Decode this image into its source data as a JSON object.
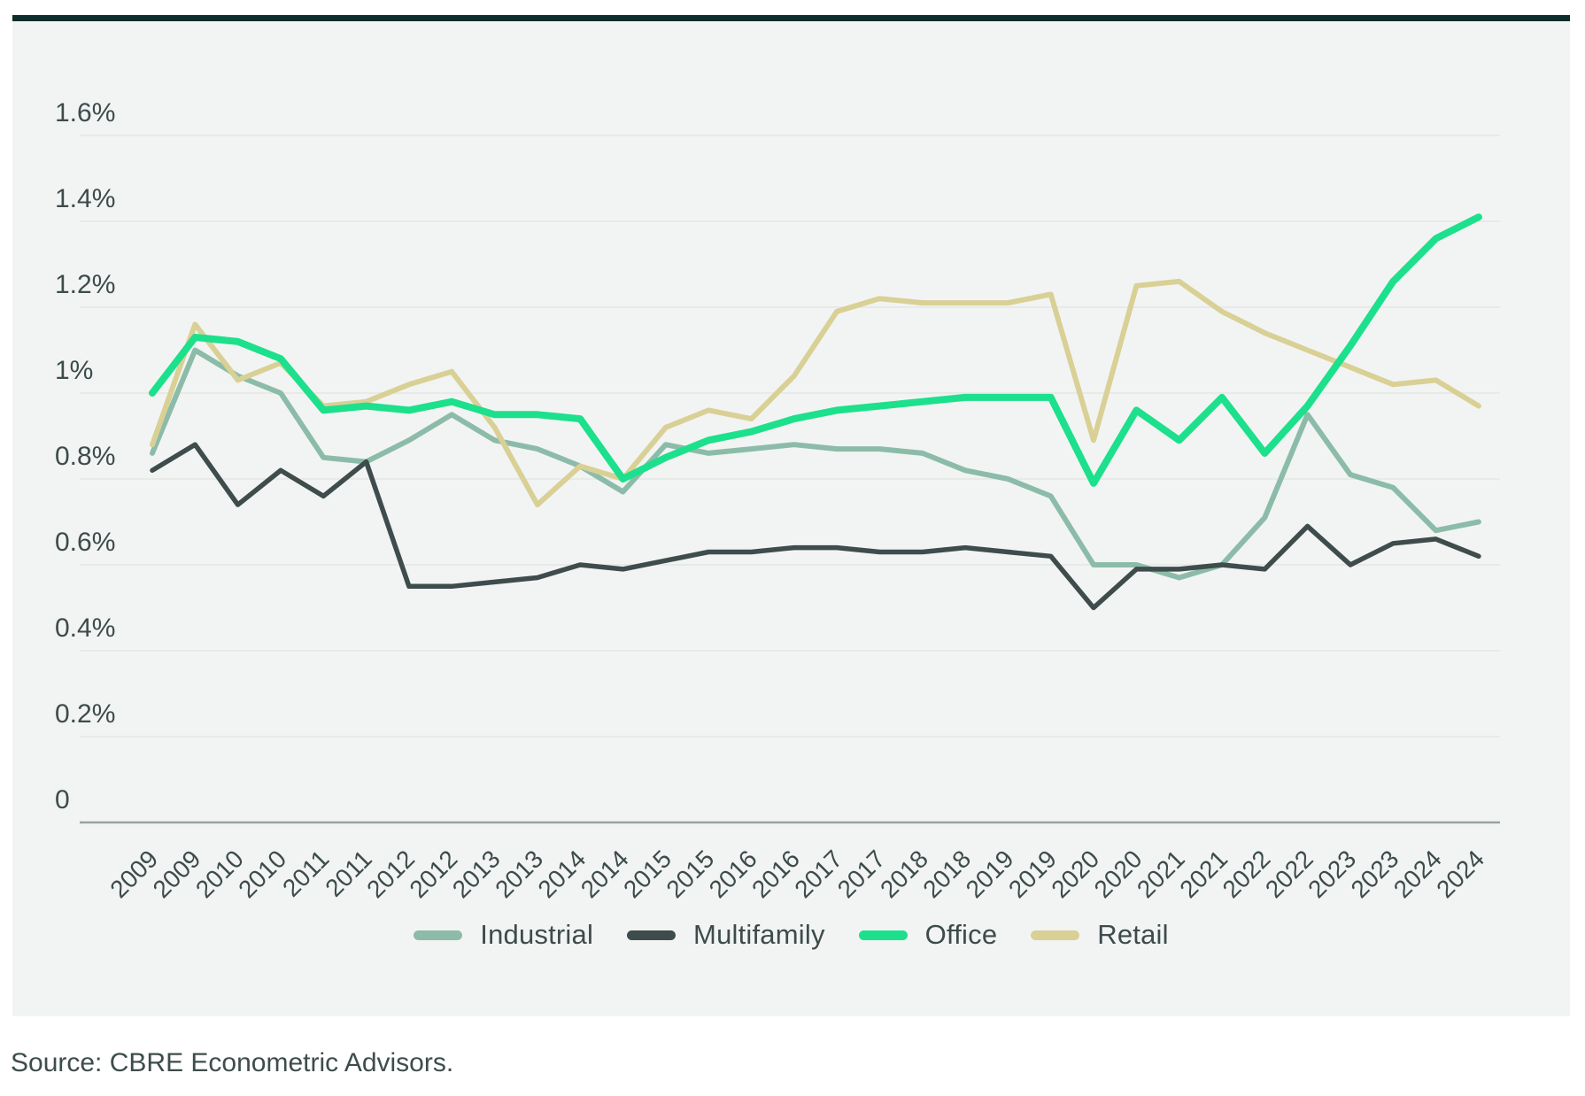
{
  "page": {
    "source_note": "Source: CBRE Econometric Advisors."
  },
  "style": {
    "accent_bar_color": "#0d2e2b",
    "card_background": "#f2f4f3",
    "gridline_color": "#e4e7e5",
    "axis_line_color": "#98a2a0",
    "tick_label_color": "#3d4b4b"
  },
  "chart_data": {
    "type": "line",
    "title": "",
    "xlabel": "",
    "ylabel": "",
    "unit": "%",
    "grid": true,
    "legend_position": "bottom-center",
    "ylim": [
      0,
      1.75
    ],
    "y_ticks": [
      "1.6%",
      "1.4%",
      "1.2%",
      "1%",
      "0.8%",
      "0.6%",
      "0.4%",
      "0.2%",
      "0"
    ],
    "y_tick_values": [
      1.6,
      1.4,
      1.2,
      1.0,
      0.8,
      0.6,
      0.4,
      0.2,
      0
    ],
    "x_labels": [
      "2009",
      "2009",
      "2010",
      "2010",
      "2011",
      "2011",
      "2012",
      "2012",
      "2013",
      "2013",
      "2014",
      "2014",
      "2015",
      "2015",
      "2016",
      "2016",
      "2017",
      "2017",
      "2018",
      "2018",
      "2019",
      "2019",
      "2020",
      "2020",
      "2021",
      "2021",
      "2022",
      "2022",
      "2023",
      "2023",
      "2024",
      "2024"
    ],
    "series": [
      {
        "name": "Industrial",
        "color": "#8cbca9",
        "values": [
          0.86,
          1.1,
          1.04,
          1.0,
          0.85,
          0.84,
          0.89,
          0.95,
          0.89,
          0.87,
          0.83,
          0.77,
          0.88,
          0.86,
          0.87,
          0.88,
          0.87,
          0.87,
          0.86,
          0.82,
          0.8,
          0.76,
          0.6,
          0.6,
          0.57,
          0.6,
          0.71,
          0.95,
          0.81,
          0.78,
          0.68,
          0.7
        ]
      },
      {
        "name": "Multifamily",
        "color": "#3e4c4c",
        "values": [
          0.82,
          0.88,
          0.74,
          0.82,
          0.76,
          0.84,
          0.55,
          0.55,
          0.56,
          0.57,
          0.6,
          0.59,
          0.61,
          0.63,
          0.63,
          0.64,
          0.64,
          0.63,
          0.63,
          0.64,
          0.63,
          0.62,
          0.5,
          0.59,
          0.59,
          0.6,
          0.59,
          0.69,
          0.6,
          0.65,
          0.66,
          0.62
        ]
      },
      {
        "name": "Office",
        "color": "#1ce08c",
        "values": [
          1.0,
          1.13,
          1.12,
          1.08,
          0.96,
          0.97,
          0.96,
          0.98,
          0.95,
          0.95,
          0.94,
          0.8,
          0.85,
          0.89,
          0.91,
          0.94,
          0.96,
          0.97,
          0.98,
          0.99,
          0.99,
          0.99,
          0.79,
          0.96,
          0.89,
          0.99,
          0.86,
          0.97,
          1.11,
          1.26,
          1.36,
          1.41
        ]
      },
      {
        "name": "Retail",
        "color": "#d9d096",
        "values": [
          0.88,
          1.16,
          1.03,
          1.07,
          0.97,
          0.98,
          1.02,
          1.05,
          0.92,
          0.74,
          0.83,
          0.8,
          0.92,
          0.96,
          0.94,
          1.04,
          1.19,
          1.22,
          1.21,
          1.21,
          1.21,
          1.23,
          0.89,
          1.25,
          1.26,
          1.19,
          1.14,
          1.1,
          1.06,
          1.02,
          1.03,
          0.97
        ]
      }
    ]
  }
}
